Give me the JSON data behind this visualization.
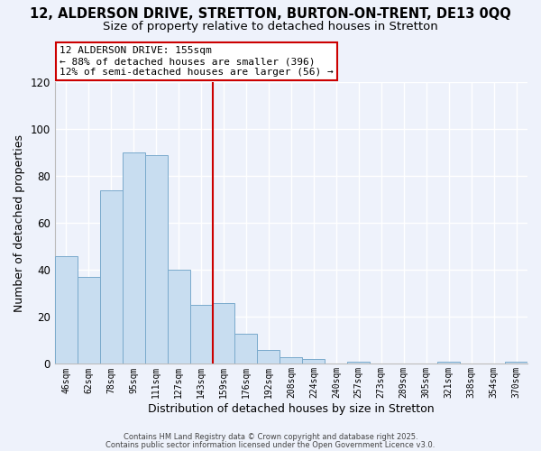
{
  "title": "12, ALDERSON DRIVE, STRETTON, BURTON-ON-TRENT, DE13 0QQ",
  "subtitle": "Size of property relative to detached houses in Stretton",
  "xlabel": "Distribution of detached houses by size in Stretton",
  "ylabel": "Number of detached properties",
  "bar_labels": [
    "46sqm",
    "62sqm",
    "78sqm",
    "95sqm",
    "111sqm",
    "127sqm",
    "143sqm",
    "159sqm",
    "176sqm",
    "192sqm",
    "208sqm",
    "224sqm",
    "240sqm",
    "257sqm",
    "273sqm",
    "289sqm",
    "305sqm",
    "321sqm",
    "338sqm",
    "354sqm",
    "370sqm"
  ],
  "bar_values": [
    46,
    37,
    74,
    90,
    89,
    40,
    25,
    26,
    13,
    6,
    3,
    2,
    0,
    1,
    0,
    0,
    0,
    1,
    0,
    0,
    1
  ],
  "bar_color": "#c8ddf0",
  "bar_edge_color": "#7aaacc",
  "reference_line_color": "#cc0000",
  "reference_line_index": 7,
  "annotation_title": "12 ALDERSON DRIVE: 155sqm",
  "annotation_line1": "← 88% of detached houses are smaller (396)",
  "annotation_line2": "12% of semi-detached houses are larger (56) →",
  "annotation_box_color": "#ffffff",
  "annotation_box_edge": "#cc0000",
  "ylim": [
    0,
    120
  ],
  "yticks": [
    0,
    20,
    40,
    60,
    80,
    100,
    120
  ],
  "footer1": "Contains HM Land Registry data © Crown copyright and database right 2025.",
  "footer2": "Contains public sector information licensed under the Open Government Licence v3.0.",
  "background_color": "#eef2fb",
  "grid_color": "#ffffff",
  "title_fontsize": 10.5,
  "subtitle_fontsize": 9.5
}
